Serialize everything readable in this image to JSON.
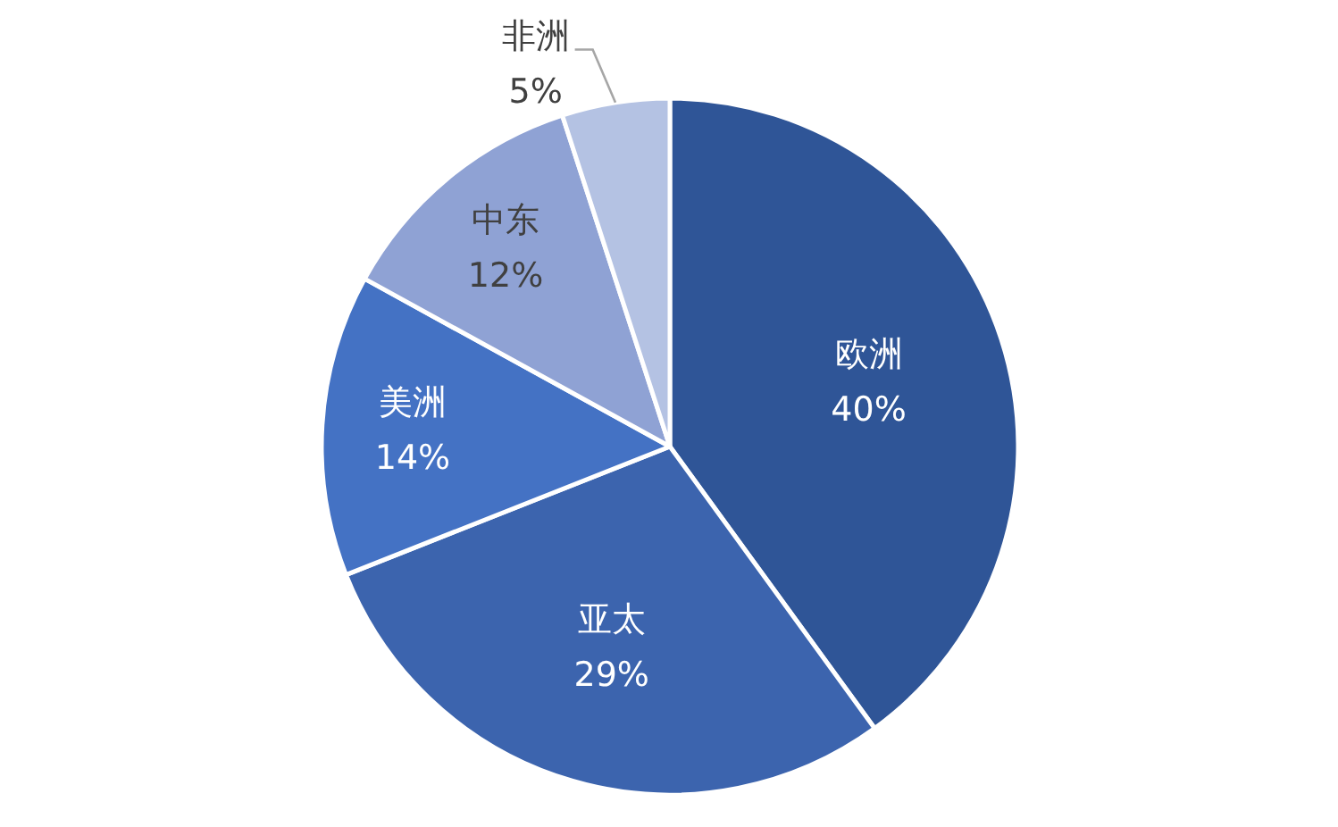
{
  "chart_data": {
    "type": "pie",
    "categories": [
      "欧洲",
      "亚太",
      "美洲",
      "中东",
      "非洲"
    ],
    "values": [
      40,
      29,
      14,
      12,
      5
    ],
    "colors": [
      "#2f5597",
      "#3c64ae",
      "#4472c4",
      "#8fa2d4",
      "#b4c2e3"
    ],
    "value_labels": [
      "40%",
      "29%",
      "14%",
      "12%",
      "5%"
    ]
  }
}
